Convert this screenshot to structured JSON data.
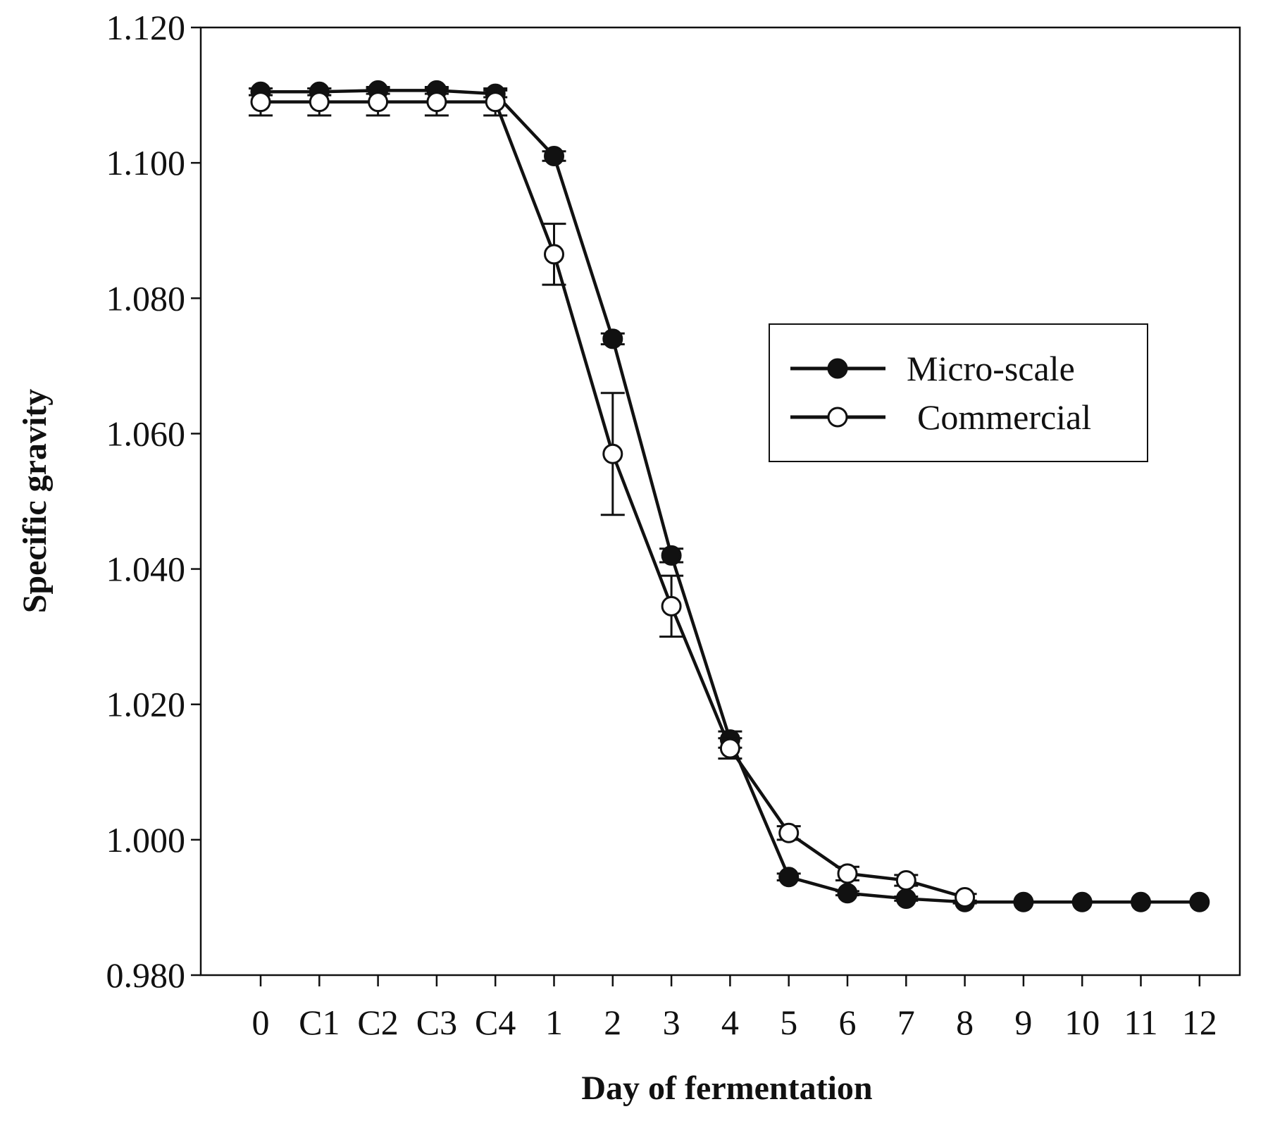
{
  "chart_data": {
    "type": "line",
    "title": "",
    "xlabel": "Day of fermentation",
    "ylabel": "Specific gravity",
    "categories": [
      "0",
      "C1",
      "C2",
      "C3",
      "C4",
      "1",
      "2",
      "3",
      "4",
      "5",
      "6",
      "7",
      "8",
      "9",
      "10",
      "11",
      "12"
    ],
    "ylim": [
      0.98,
      1.12
    ],
    "yticks": [
      "0.980",
      "1.000",
      "1.020",
      "1.040",
      "1.060",
      "1.080",
      "1.100",
      "1.120"
    ],
    "grid": false,
    "legend_position": "center-right",
    "series": [
      {
        "name": "Micro-scale",
        "marker": "filled-circle",
        "values": [
          1.1105,
          1.1105,
          1.1107,
          1.1107,
          1.1102,
          1.101,
          1.074,
          1.042,
          1.0148,
          0.9945,
          0.9921,
          0.9913,
          0.9908,
          0.9908,
          0.9908,
          0.9908,
          0.9908
        ],
        "errors": [
          0.0005,
          0.0005,
          0.0005,
          0.0005,
          0.0005,
          0.0007,
          0.0008,
          0.001,
          0.0012,
          0.0005,
          0.0003,
          0.0003,
          0.0002,
          0,
          0,
          0,
          0
        ]
      },
      {
        "name": "Commercial",
        "marker": "open-circle",
        "values": [
          1.109,
          1.109,
          1.109,
          1.109,
          1.109,
          1.0865,
          1.057,
          1.0345,
          1.0135,
          1.001,
          0.995,
          0.994,
          0.9915,
          null,
          null,
          null,
          null
        ],
        "errors": [
          0.002,
          0.002,
          0.002,
          0.002,
          0.002,
          0.0045,
          0.009,
          0.0045,
          0.0015,
          0.001,
          0.001,
          0.0008,
          0.0005,
          0,
          0,
          0,
          0
        ]
      }
    ]
  }
}
